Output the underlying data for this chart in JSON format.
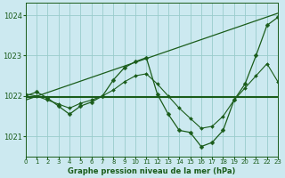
{
  "title": "Graphe pression niveau de la mer (hPa)",
  "bg_color": "#cce9f0",
  "grid_color": "#99cccc",
  "line_color": "#1a5c1a",
  "x_min": 0,
  "x_max": 23,
  "y_min": 1020.5,
  "y_max": 1024.3,
  "y_ticks": [
    1021,
    1022,
    1023,
    1024
  ],
  "x_ticks": [
    0,
    1,
    2,
    3,
    4,
    5,
    6,
    7,
    8,
    9,
    10,
    11,
    12,
    13,
    14,
    15,
    16,
    17,
    18,
    19,
    20,
    21,
    22,
    23
  ],
  "hours": [
    0,
    1,
    2,
    3,
    4,
    5,
    6,
    7,
    8,
    9,
    10,
    11,
    12,
    13,
    14,
    15,
    16,
    17,
    18,
    19,
    20,
    21,
    22,
    23
  ],
  "pressure_main": [
    1022.0,
    1022.1,
    1021.95,
    1021.75,
    1021.55,
    1021.75,
    1021.85,
    1022.0,
    1022.4,
    1022.7,
    1022.85,
    1022.95,
    1022.05,
    1021.55,
    1021.15,
    1021.1,
    1020.75,
    1020.85,
    1021.15,
    1021.9,
    1022.3,
    1023.0,
    1023.75,
    1023.95
  ],
  "pressure_smooth": [
    1022.05,
    1022.0,
    1021.9,
    1021.8,
    1021.7,
    1021.82,
    1021.9,
    1022.0,
    1022.15,
    1022.35,
    1022.5,
    1022.55,
    1022.3,
    1022.0,
    1021.7,
    1021.45,
    1021.2,
    1021.25,
    1021.5,
    1021.9,
    1022.2,
    1022.5,
    1022.8,
    1022.35
  ],
  "flat_line_y": 1021.97,
  "trend_x": [
    0,
    23
  ],
  "trend_y": [
    1021.9,
    1024.05
  ]
}
